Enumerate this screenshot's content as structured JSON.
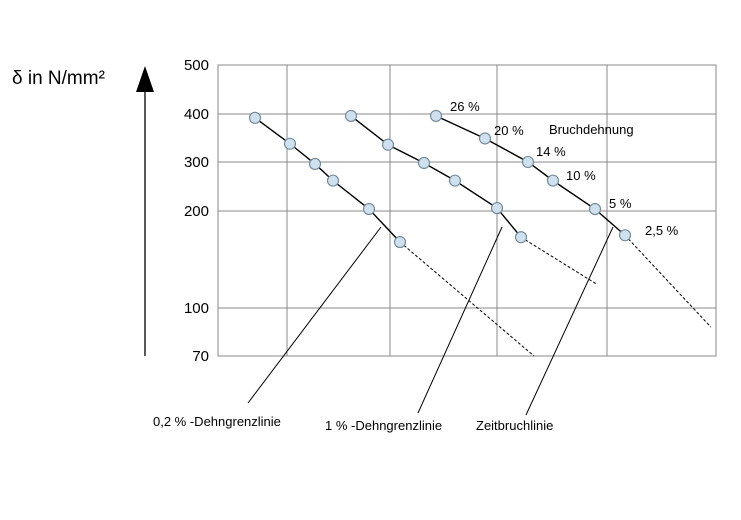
{
  "chart_data": {
    "type": "scatter",
    "ylabel": "δ in N/mm²",
    "yticks": [
      "500",
      "400",
      "300",
      "200",
      "100",
      "70"
    ],
    "x_axis": "none",
    "grid": true,
    "line_series": [
      {
        "name": "0,2 % -Dehngrenzlinie",
        "points": [
          [
            255,
            392
          ],
          [
            290,
            338
          ],
          [
            315,
            296
          ],
          [
            333,
            262
          ],
          [
            369,
            204
          ],
          [
            400,
            168
          ]
        ],
        "extrapolation": [
          [
            400,
            168
          ],
          [
            534,
            70
          ]
        ]
      },
      {
        "name": "1 % -Dehngrenzlinie",
        "points": [
          [
            351,
            396
          ],
          [
            388,
            336
          ],
          [
            424,
            298
          ],
          [
            455,
            262
          ],
          [
            497,
            206
          ],
          [
            521,
            173
          ]
        ],
        "extrapolation": [
          [
            521,
            173
          ],
          [
            596,
            125
          ]
        ]
      },
      {
        "name": "Zeitbruchlinie",
        "points": [
          [
            436,
            396
          ],
          [
            485,
            349
          ],
          [
            528,
            300
          ],
          [
            553,
            262
          ],
          [
            595,
            204
          ],
          [
            625,
            175
          ]
        ],
        "extrapolation": [
          [
            625,
            175
          ],
          [
            711,
            88
          ]
        ]
      }
    ],
    "rupture_strain": {
      "title": "Bruchdehnung",
      "labels": [
        "26 %",
        "20 %",
        "14 %",
        "10 %",
        "5 %",
        "2,5 %"
      ]
    },
    "annotations": [
      "0,2 % -Dehngrenzlinie",
      "1 % -Dehngrenzlinie",
      "Zeitbruchlinie"
    ]
  }
}
